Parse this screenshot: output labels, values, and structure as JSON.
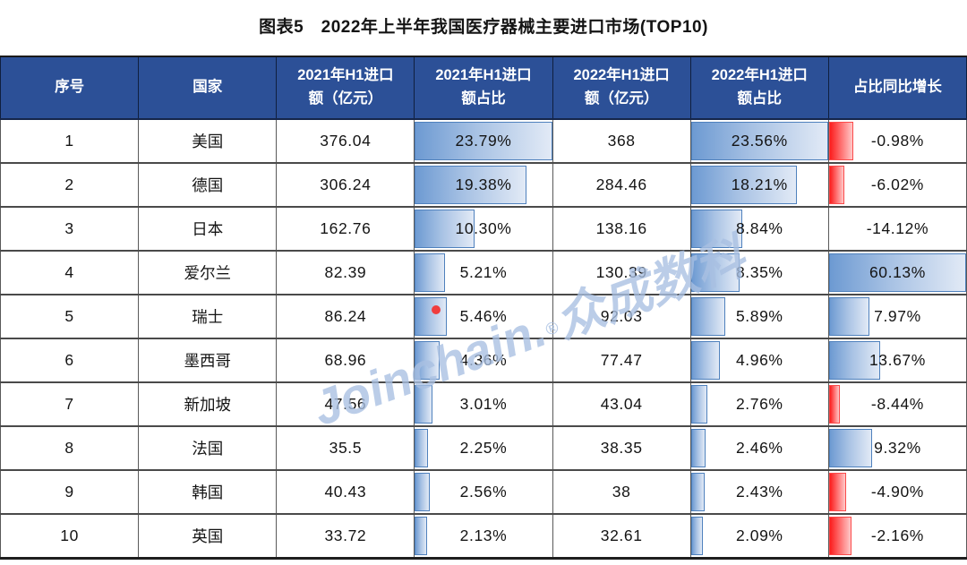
{
  "page": {
    "title": "图表5　2022年上半年我国医疗器械主要进口市场(TOP10)"
  },
  "watermark": {
    "text_latin": "Joinchain",
    "text_dot": ".",
    "text_reg": "®",
    "text_cn": "众成数科"
  },
  "colors": {
    "header_bg": "#2C5097",
    "header_text": "#FFFFFF",
    "bar_blue_start": "#6D9AD2",
    "bar_blue_end": "#E2EAF6",
    "bar_blue_border": "#4F81BD",
    "bar_red_start": "#FB1D1D",
    "bar_red_end": "#FFC9C9",
    "watermark_text": "#A9C0E2",
    "body_text": "#141414"
  },
  "chart_data": {
    "type": "table",
    "title": "图表5　2022年上半年我国医疗器械主要进口市场(TOP10)",
    "columns": [
      "序号",
      "国家",
      "2021年H1进口额（亿元）",
      "2021年H1进口额占比",
      "2022年H1进口额（亿元）",
      "2022年H1进口额占比",
      "占比同比增长"
    ],
    "header_lines": [
      [
        "序号"
      ],
      [
        "国家"
      ],
      [
        "2021年H1进口",
        "额（亿元）"
      ],
      [
        "2021年H1进口",
        "额占比"
      ],
      [
        "2022年H1进口",
        "额（亿元）"
      ],
      [
        "2022年H1进口",
        "额占比"
      ],
      [
        "占比同比增长"
      ]
    ],
    "bar_axes": {
      "share_2021_max": 23.79,
      "share_2022_max": 23.56,
      "growth_min": -14.12,
      "growth_max": 60.13
    },
    "rows": [
      {
        "rank": "1",
        "country": "美国",
        "amount_2021": "376.04",
        "share_2021": 23.79,
        "share_2021_label": "23.79%",
        "amount_2022": "368",
        "share_2022": 23.56,
        "share_2022_label": "23.56%",
        "growth": -0.98,
        "growth_label": "-0.98%"
      },
      {
        "rank": "2",
        "country": "德国",
        "amount_2021": "306.24",
        "share_2021": 19.38,
        "share_2021_label": "19.38%",
        "amount_2022": "284.46",
        "share_2022": 18.21,
        "share_2022_label": "18.21%",
        "growth": -6.02,
        "growth_label": "-6.02%"
      },
      {
        "rank": "3",
        "country": "日本",
        "amount_2021": "162.76",
        "share_2021": 10.3,
        "share_2021_label": "10.30%",
        "amount_2022": "138.16",
        "share_2022": 8.84,
        "share_2022_label": "8.84%",
        "growth": -14.12,
        "growth_label": "-14.12%"
      },
      {
        "rank": "4",
        "country": "爱尔兰",
        "amount_2021": "82.39",
        "share_2021": 5.21,
        "share_2021_label": "5.21%",
        "amount_2022": "130.39",
        "share_2022": 8.35,
        "share_2022_label": "8.35%",
        "growth": 60.13,
        "growth_label": "60.13%"
      },
      {
        "rank": "5",
        "country": "瑞士",
        "amount_2021": "86.24",
        "share_2021": 5.46,
        "share_2021_label": "5.46%",
        "amount_2022": "92.03",
        "share_2022": 5.89,
        "share_2022_label": "5.89%",
        "growth": 7.97,
        "growth_label": "7.97%"
      },
      {
        "rank": "6",
        "country": "墨西哥",
        "amount_2021": "68.96",
        "share_2021": 4.36,
        "share_2021_label": "4.36%",
        "amount_2022": "77.47",
        "share_2022": 4.96,
        "share_2022_label": "4.96%",
        "growth": 13.67,
        "growth_label": "13.67%"
      },
      {
        "rank": "7",
        "country": "新加坡",
        "amount_2021": "47.56",
        "share_2021": 3.01,
        "share_2021_label": "3.01%",
        "amount_2022": "43.04",
        "share_2022": 2.76,
        "share_2022_label": "2.76%",
        "growth": -8.44,
        "growth_label": "-8.44%"
      },
      {
        "rank": "8",
        "country": "法国",
        "amount_2021": "35.5",
        "share_2021": 2.25,
        "share_2021_label": "2.25%",
        "amount_2022": "38.35",
        "share_2022": 2.46,
        "share_2022_label": "2.46%",
        "growth": 9.32,
        "growth_label": "9.32%"
      },
      {
        "rank": "9",
        "country": "韩国",
        "amount_2021": "40.43",
        "share_2021": 2.56,
        "share_2021_label": "2.56%",
        "amount_2022": "38",
        "share_2022": 2.43,
        "share_2022_label": "2.43%",
        "growth": -4.9,
        "growth_label": "-4.90%"
      },
      {
        "rank": "10",
        "country": "英国",
        "amount_2021": "33.72",
        "share_2021": 2.13,
        "share_2021_label": "2.13%",
        "amount_2022": "32.61",
        "share_2022": 2.09,
        "share_2022_label": "2.09%",
        "growth": -2.16,
        "growth_label": "-2.16%"
      }
    ]
  }
}
